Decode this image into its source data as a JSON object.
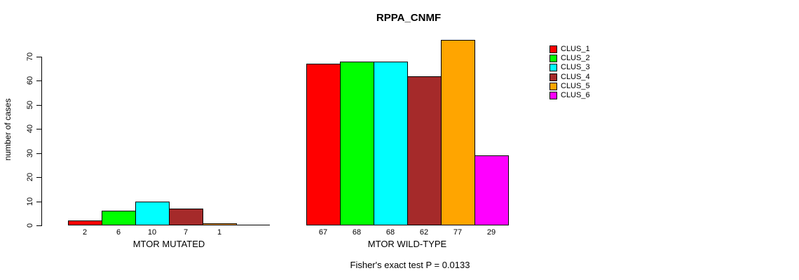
{
  "title": "RPPA_CNMF",
  "ylabel": "number of cases",
  "annotation": "Fisher's exact test P = 0.0133",
  "chart_data": {
    "type": "bar",
    "title": "RPPA_CNMF",
    "xlabel": "",
    "ylabel": "number of cases",
    "ylim": [
      0,
      70
    ],
    "yticks": [
      0,
      10,
      20,
      30,
      40,
      50,
      60,
      70
    ],
    "grid": false,
    "legend_position": "right-outside",
    "series_names": [
      "CLUS_1",
      "CLUS_2",
      "CLUS_3",
      "CLUS_4",
      "CLUS_5",
      "CLUS_6"
    ],
    "colors": [
      "#FF0000",
      "#00FF00",
      "#00FFFF",
      "#A52A2A",
      "#FFA500",
      "#FF00FF"
    ],
    "groups": [
      {
        "label": "MTOR MUTATED",
        "values": [
          2,
          6,
          10,
          7,
          1,
          0
        ]
      },
      {
        "label": "MTOR WILD-TYPE",
        "values": [
          67,
          68,
          68,
          62,
          77,
          29
        ]
      }
    ],
    "bar_value_labels_shown": true,
    "zero_value_labels_hidden": true,
    "annotation": "Fisher's exact test P = 0.0133"
  }
}
